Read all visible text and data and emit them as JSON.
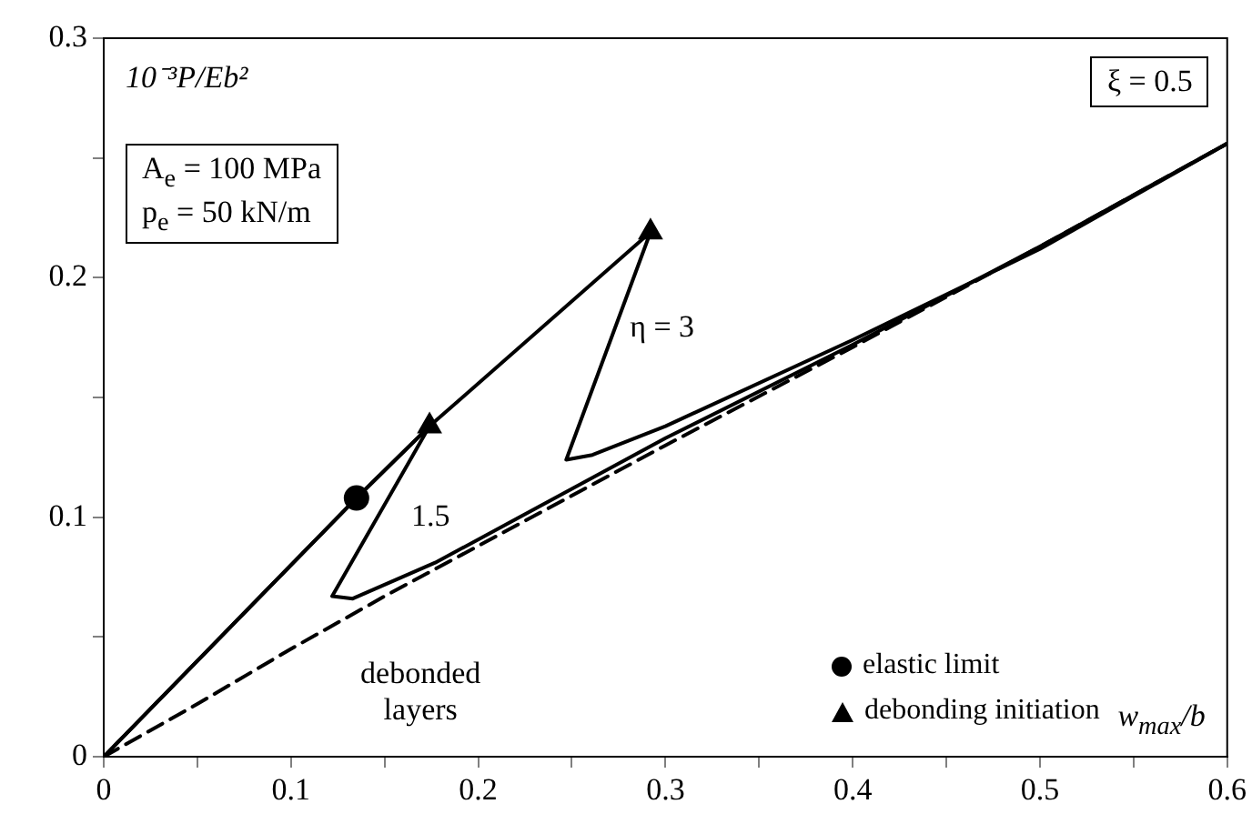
{
  "chart_data": {
    "type": "line",
    "xlabel": "w$_{max}$/b",
    "ylabel": "10⁻³P/Eb²",
    "xlim": [
      0,
      0.6
    ],
    "ylim": [
      0,
      0.3
    ],
    "xticks": [
      0,
      {
        "value": 0.05,
        "label": null
      },
      0.1,
      {
        "value": 0.15,
        "label": null
      },
      0.2,
      {
        "value": 0.25,
        "label": null
      },
      0.3,
      {
        "value": 0.35,
        "label": null
      },
      0.4,
      {
        "value": 0.45,
        "label": null
      },
      0.5,
      {
        "value": 0.55,
        "label": null
      },
      0.6
    ],
    "yticks": [
      0,
      {
        "value": 0.05,
        "label": null
      },
      0.1,
      {
        "value": 0.15,
        "label": null
      },
      0.2,
      {
        "value": 0.25,
        "label": null
      },
      0.3
    ],
    "grid": false,
    "legend": "bottom right",
    "series": [
      {
        "type": "line",
        "color": "#000000",
        "marker": "none",
        "line_style": "solid",
        "x": [
          0,
          0.135,
          0.174,
          0.122,
          0.133,
          0.177,
          0.215,
          0.3,
          0.4,
          0.5,
          0.6
        ],
        "values": [
          0,
          0.108,
          0.138,
          0.067,
          0.066,
          0.081,
          0.097,
          0.133,
          0.172,
          0.213,
          0.256
        ]
      },
      {
        "type": "line",
        "color": "#000000",
        "marker": "none",
        "line_style": "solid",
        "x": [
          0,
          0.135,
          0.174,
          0.292,
          0.247,
          0.261,
          0.3,
          0.4,
          0.5,
          0.6
        ],
        "values": [
          0,
          0.108,
          0.138,
          0.219,
          0.124,
          0.126,
          0.138,
          0.174,
          0.212,
          0.256
        ]
      },
      {
        "type": "line",
        "color": "#000000",
        "marker": "none",
        "line_style": "dashed",
        "x": [
          0,
          0.05,
          0.1,
          0.15,
          0.2,
          0.3,
          0.4,
          0.5,
          0.6
        ],
        "values": [
          0,
          0.022,
          0.045,
          0.067,
          0.088,
          0.13,
          0.171,
          0.213,
          0.256
        ]
      },
      {
        "type": "scatter",
        "name": "elastic limit",
        "color": "#000000",
        "marker": "circle",
        "x": [
          0.135
        ],
        "values": [
          0.108
        ]
      },
      {
        "type": "scatter",
        "name": "debonding initiation",
        "color": "#000000",
        "marker": "triangle",
        "x": [
          0.174,
          0.292
        ],
        "values": [
          0.138,
          0.219
        ]
      }
    ],
    "annotations": [
      "ξ = 0.5",
      "A$_{e}$ = 100 MPa\np$_{e}$ = 50 kN/m",
      "η = 3",
      "1.5",
      "debonded layers"
    ]
  }
}
